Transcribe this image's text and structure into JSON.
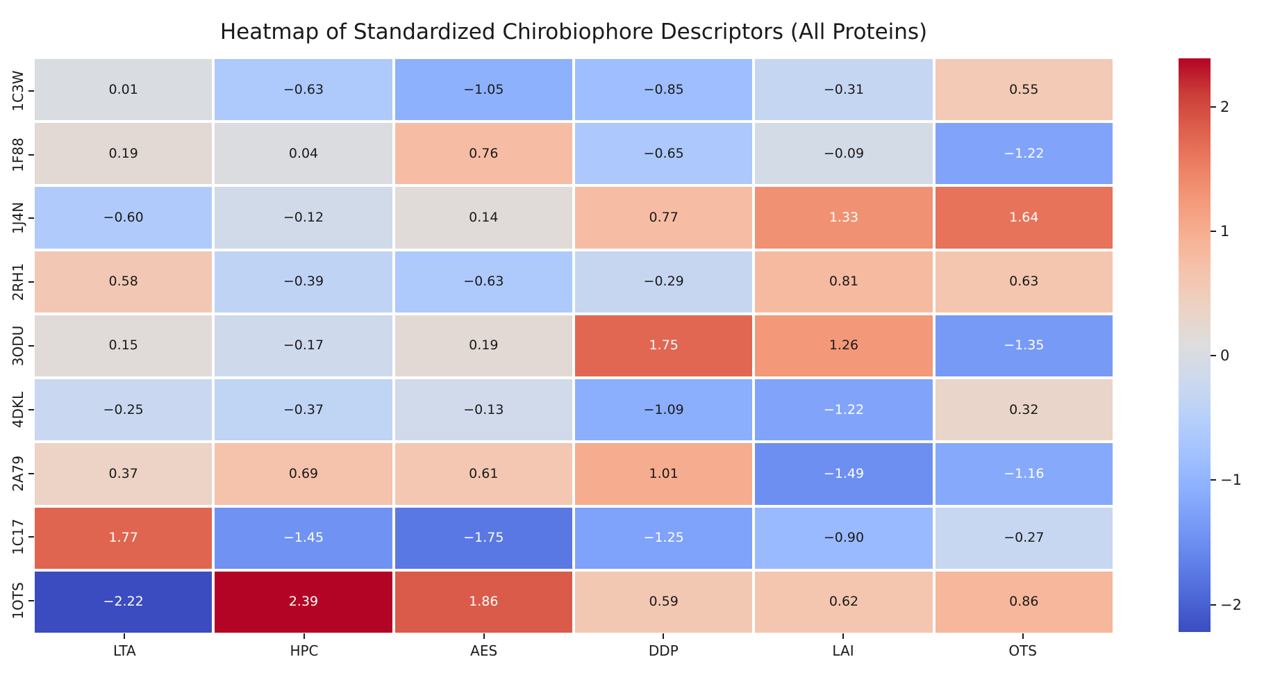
{
  "title": "Heatmap of Standardized Chirobiophore Descriptors (All Proteins)",
  "chart_data": {
    "type": "heatmap",
    "title": "Heatmap of Standardized Chirobiophore Descriptors (All Proteins)",
    "rows": [
      "1C3W",
      "1F88",
      "1J4N",
      "2RH1",
      "3ODU",
      "4DKL",
      "2A79",
      "1C17",
      "1OTS"
    ],
    "columns": [
      "LTA",
      "HPC",
      "AES",
      "DDP",
      "LAI",
      "OTS"
    ],
    "values": [
      [
        0.01,
        -0.63,
        -1.05,
        -0.85,
        -0.31,
        0.55
      ],
      [
        0.19,
        0.04,
        0.76,
        -0.65,
        -0.09,
        -1.22
      ],
      [
        -0.6,
        -0.12,
        0.14,
        0.77,
        1.33,
        1.64
      ],
      [
        0.58,
        -0.39,
        -0.63,
        -0.29,
        0.81,
        0.63
      ],
      [
        0.15,
        -0.17,
        0.19,
        1.75,
        1.26,
        -1.35
      ],
      [
        -0.25,
        -0.37,
        -0.13,
        -1.09,
        -1.22,
        0.32
      ],
      [
        0.37,
        0.69,
        0.61,
        1.01,
        -1.49,
        -1.16
      ],
      [
        1.77,
        -1.45,
        -1.75,
        -1.25,
        -0.9,
        -0.27
      ],
      [
        -2.22,
        2.39,
        1.86,
        0.59,
        0.62,
        0.86
      ]
    ],
    "vmin": -2.22,
    "vmax": 2.39,
    "colormap": "coolwarm",
    "colorbar_ticks": [
      2,
      1,
      0,
      -1,
      -2
    ],
    "annotation_decimals": 2,
    "gridlines": "white",
    "legend_position": "right-colorbar"
  },
  "colors": {
    "background": "#ffffff",
    "label_text": "#1a1a1a",
    "annotation_dark": "#1a1a1a",
    "annotation_light": "#ffffff",
    "gridline": "#ffffff",
    "colormap_min": "#3b4cc0",
    "colormap_mid": "#dddddd",
    "colormap_max": "#b40426"
  }
}
